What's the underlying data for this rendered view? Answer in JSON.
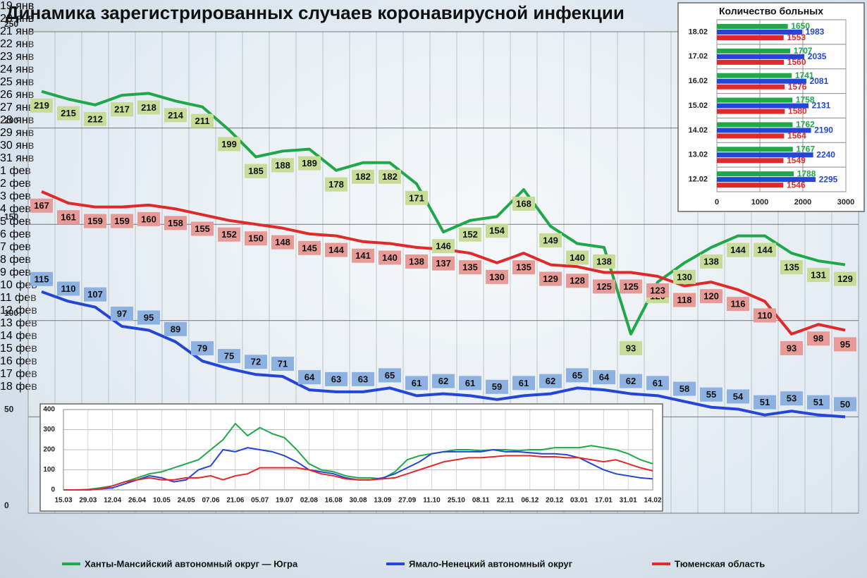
{
  "chart_data": [
    {
      "type": "line",
      "title": "Динамика зарегистрированных случаев коронавирусной инфекции",
      "categories": [
        "19 янв",
        "20 янв",
        "21 янв",
        "22 янв",
        "23 янв",
        "24 янв",
        "25 янв",
        "26 янв",
        "27 янв",
        "28 янв",
        "29 янв",
        "30 янв",
        "31 янв",
        "1 фев",
        "2 фев",
        "3 фев",
        "4 фев",
        "5 фев",
        "6 фев",
        "7 фев",
        "8 фев",
        "9 фев",
        "10 фев",
        "11 фев",
        "12 фев",
        "13 фев",
        "14 фев",
        "15 фев",
        "16 фев",
        "17 фев",
        "18 фев"
      ],
      "series": [
        {
          "name": "Ханты-Мансийский автономный округ — Югра",
          "color": "#1fa84a",
          "values": [
            219,
            215,
            212,
            217,
            218,
            214,
            211,
            199,
            185,
            188,
            189,
            178,
            182,
            182,
            171,
            146,
            152,
            154,
            168,
            149,
            140,
            138,
            93,
            120,
            130,
            138,
            144,
            144,
            135,
            131,
            129
          ]
        },
        {
          "name": "Ямало-Ненецкий автономный округ",
          "color": "#2346d8",
          "values": [
            115,
            110,
            107,
            97,
            95,
            89,
            79,
            75,
            72,
            71,
            64,
            63,
            63,
            65,
            61,
            62,
            61,
            59,
            61,
            62,
            65,
            64,
            62,
            61,
            58,
            55,
            54,
            51,
            53,
            51,
            50
          ]
        },
        {
          "name": "Тюменская область",
          "color": "#e02a2a",
          "values": [
            167,
            161,
            159,
            159,
            160,
            158,
            155,
            152,
            150,
            148,
            145,
            144,
            141,
            140,
            138,
            137,
            135,
            130,
            135,
            129,
            128,
            125,
            125,
            123,
            118,
            120,
            116,
            110,
            93,
            98,
            95
          ]
        }
      ],
      "ylim": [
        0,
        250
      ],
      "yticks": [
        0,
        50,
        100,
        150,
        200,
        250
      ],
      "grid": true,
      "legend": "bottom"
    },
    {
      "type": "barh",
      "title": "Количество больных",
      "categories": [
        "18.02",
        "17.02",
        "16.02",
        "15.02",
        "14.02",
        "13.02",
        "12.02"
      ],
      "series": [
        {
          "color": "#1fa84a",
          "values": [
            1650,
            1707,
            1741,
            1758,
            1762,
            1767,
            1788
          ]
        },
        {
          "color": "#2346d8",
          "values": [
            1983,
            2035,
            2081,
            2131,
            2190,
            2240,
            2295
          ]
        },
        {
          "color": "#e02a2a",
          "values": [
            1553,
            1560,
            1576,
            1580,
            1564,
            1549,
            1546
          ]
        }
      ],
      "xlim": [
        0,
        3000
      ],
      "xticks": [
        0,
        1000,
        2000,
        3000
      ],
      "grid": true
    },
    {
      "type": "line",
      "categories": [
        "15.03",
        null,
        "29.03",
        null,
        "12.04",
        null,
        "26.04",
        null,
        "10.05",
        null,
        "24.05",
        null,
        "07.06",
        null,
        "21.06",
        null,
        "05.07",
        null,
        "19.07",
        null,
        "02.08",
        null,
        "16.08",
        null,
        "30.08",
        null,
        "13.09",
        null,
        "27.09",
        null,
        "11.10",
        null,
        "25.10",
        null,
        "08.11",
        null,
        "22.11",
        null,
        "06.12",
        null,
        "20.12",
        null,
        "03.01",
        null,
        "17.01",
        null,
        "31.01",
        null,
        "14.02"
      ],
      "series": [
        {
          "color": "#1fa84a",
          "values": [
            0,
            0,
            2,
            10,
            20,
            40,
            60,
            80,
            90,
            110,
            130,
            150,
            200,
            250,
            330,
            270,
            310,
            280,
            260,
            200,
            130,
            100,
            90,
            70,
            60,
            60,
            55,
            90,
            150,
            170,
            180,
            190,
            200,
            200,
            195,
            200,
            200,
            195,
            200,
            200,
            210,
            210,
            210,
            220,
            210,
            200,
            180,
            150,
            130
          ]
        },
        {
          "color": "#2346d8",
          "values": [
            0,
            0,
            0,
            5,
            10,
            30,
            50,
            70,
            60,
            40,
            50,
            100,
            120,
            200,
            190,
            210,
            200,
            190,
            170,
            140,
            100,
            90,
            80,
            60,
            50,
            50,
            60,
            80,
            110,
            140,
            180,
            190,
            190,
            190,
            190,
            200,
            190,
            190,
            185,
            180,
            180,
            175,
            160,
            130,
            100,
            80,
            70,
            60,
            55
          ]
        },
        {
          "color": "#e02a2a",
          "values": [
            0,
            0,
            0,
            5,
            20,
            40,
            50,
            60,
            50,
            50,
            60,
            60,
            70,
            50,
            70,
            80,
            110,
            110,
            110,
            110,
            100,
            80,
            70,
            55,
            50,
            50,
            55,
            60,
            80,
            100,
            120,
            140,
            150,
            160,
            160,
            165,
            170,
            170,
            170,
            165,
            165,
            160,
            160,
            150,
            140,
            150,
            130,
            110,
            95
          ]
        }
      ],
      "ylim": [
        0,
        400
      ],
      "yticks": [
        0,
        100,
        200,
        300,
        400
      ],
      "grid": true
    }
  ]
}
